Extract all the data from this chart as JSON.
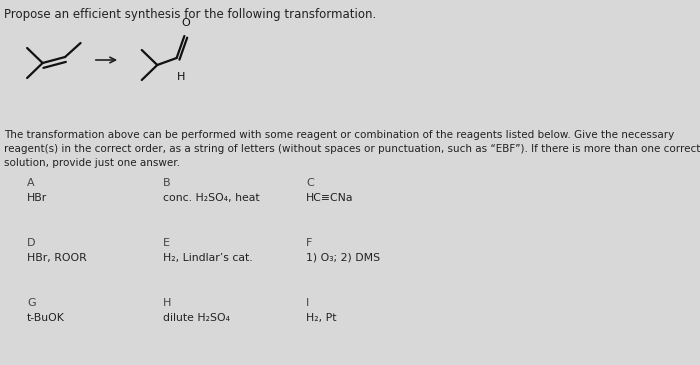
{
  "title": "Propose an efficient synthesis for the following transformation.",
  "description_line1": "The transformation above can be performed with some reagent or combination of the reagents listed below. Give the necessary",
  "description_line2": "reagent(s) in the correct order, as a string of letters (without spaces or punctuation, such as “EBF”). If there is more than one correct",
  "description_line3": "solution, provide just one answer.",
  "reagents": [
    {
      "label": "A",
      "text": "HBr",
      "col": 0,
      "row": 0
    },
    {
      "label": "B",
      "text": "conc. H₂SO₄, heat",
      "col": 1,
      "row": 0
    },
    {
      "label": "C",
      "text": "HC≡CNa",
      "col": 2,
      "row": 0
    },
    {
      "label": "D",
      "text": "HBr, ROOR",
      "col": 0,
      "row": 1
    },
    {
      "label": "E",
      "text": "H₂, Lindlar’s cat.",
      "col": 1,
      "row": 1
    },
    {
      "label": "F",
      "text": "1) O₃; 2) DMS",
      "col": 2,
      "row": 1
    },
    {
      "label": "G",
      "text": "t-BuOK",
      "col": 0,
      "row": 2
    },
    {
      "label": "H",
      "text": "dilute H₂SO₄",
      "col": 1,
      "row": 2
    },
    {
      "label": "I",
      "text": "H₂, Pt",
      "col": 2,
      "row": 2
    }
  ],
  "bg_color": "#d8d8d8",
  "text_color": "#222222",
  "label_color": "#444444",
  "mol_color": "#111111"
}
